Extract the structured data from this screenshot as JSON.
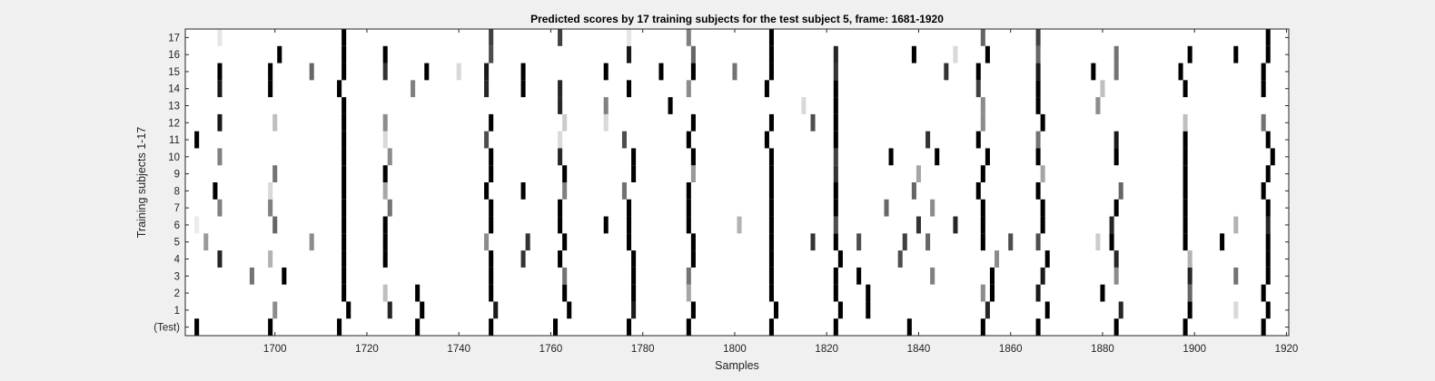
{
  "chart_data": {
    "type": "heatmap",
    "title": "Predicted scores by 17 training subjects for the test subject 5, frame: 1681-1920",
    "xlabel": "Samples",
    "ylabel": "Training subjects 1-17",
    "xlim": [
      1681,
      1920
    ],
    "x_ticks": [
      1700,
      1720,
      1740,
      1760,
      1780,
      1800,
      1820,
      1840,
      1860,
      1880,
      1900,
      1920
    ],
    "y_tick_labels": [
      "(Test)",
      "1",
      "2",
      "3",
      "4",
      "5",
      "6",
      "7",
      "8",
      "9",
      "10",
      "11",
      "12",
      "13",
      "14",
      "15",
      "16",
      "17"
    ],
    "colormap": "gray (white = 0, black = 1)",
    "background_color": "#ffffff",
    "rows": [
      {
        "label": "(Test)",
        "marks": [
          [
            1683,
            1
          ],
          [
            1699,
            1
          ],
          [
            1714,
            1
          ],
          [
            1731,
            1
          ],
          [
            1747,
            1
          ],
          [
            1761,
            1
          ],
          [
            1777,
            1
          ],
          [
            1790,
            1
          ],
          [
            1808,
            1
          ],
          [
            1822,
            1
          ],
          [
            1838,
            1
          ],
          [
            1854,
            1
          ],
          [
            1866,
            1
          ],
          [
            1883,
            1
          ],
          [
            1898,
            1
          ],
          [
            1915,
            1
          ]
        ]
      },
      {
        "label": "1",
        "marks": [
          [
            1700,
            0.45
          ],
          [
            1716,
            1
          ],
          [
            1725,
            0.85
          ],
          [
            1732,
            1
          ],
          [
            1748,
            0.9
          ],
          [
            1764,
            1
          ],
          [
            1778,
            0.9
          ],
          [
            1791,
            1
          ],
          [
            1809,
            1
          ],
          [
            1823,
            1
          ],
          [
            1829,
            1
          ],
          [
            1855,
            0.85
          ],
          [
            1868,
            1
          ],
          [
            1884,
            0.85
          ],
          [
            1899,
            1
          ],
          [
            1909,
            0.15
          ],
          [
            1916,
            1
          ]
        ]
      },
      {
        "label": "2",
        "marks": [
          [
            1715,
            1
          ],
          [
            1724,
            0.25
          ],
          [
            1731,
            1
          ],
          [
            1747,
            1
          ],
          [
            1763,
            1
          ],
          [
            1778,
            1
          ],
          [
            1790,
            0.35
          ],
          [
            1808,
            1
          ],
          [
            1822,
            1
          ],
          [
            1829,
            1
          ],
          [
            1854,
            0.45
          ],
          [
            1856,
            1
          ],
          [
            1866,
            0.9
          ],
          [
            1880,
            1
          ],
          [
            1899,
            0.6
          ],
          [
            1915,
            1
          ]
        ]
      },
      {
        "label": "3",
        "marks": [
          [
            1695,
            0.55
          ],
          [
            1702,
            1
          ],
          [
            1715,
            1
          ],
          [
            1747,
            1
          ],
          [
            1763,
            0.55
          ],
          [
            1778,
            1
          ],
          [
            1790,
            0.55
          ],
          [
            1808,
            1
          ],
          [
            1822,
            1
          ],
          [
            1827,
            1
          ],
          [
            1843,
            0.5
          ],
          [
            1856,
            1
          ],
          [
            1867,
            0.9
          ],
          [
            1883,
            0.45
          ],
          [
            1899,
            0.85
          ],
          [
            1909,
            0.55
          ],
          [
            1916,
            1
          ]
        ]
      },
      {
        "label": "4",
        "marks": [
          [
            1688,
            0.85
          ],
          [
            1699,
            0.3
          ],
          [
            1715,
            1
          ],
          [
            1724,
            1
          ],
          [
            1747,
            1
          ],
          [
            1754,
            0.8
          ],
          [
            1762,
            1
          ],
          [
            1778,
            1
          ],
          [
            1791,
            1
          ],
          [
            1808,
            1
          ],
          [
            1823,
            1
          ],
          [
            1836,
            0.7
          ],
          [
            1857,
            0.45
          ],
          [
            1868,
            1
          ],
          [
            1883,
            0.85
          ],
          [
            1899,
            0.3
          ],
          [
            1916,
            1
          ]
        ]
      },
      {
        "label": "5",
        "marks": [
          [
            1685,
            0.4
          ],
          [
            1708,
            0.45
          ],
          [
            1715,
            1
          ],
          [
            1724,
            1
          ],
          [
            1746,
            0.45
          ],
          [
            1755,
            0.8
          ],
          [
            1763,
            1
          ],
          [
            1777,
            1
          ],
          [
            1791,
            1
          ],
          [
            1808,
            1
          ],
          [
            1817,
            0.8
          ],
          [
            1822,
            1
          ],
          [
            1827,
            0.7
          ],
          [
            1837,
            0.75
          ],
          [
            1842,
            0.6
          ],
          [
            1854,
            1
          ],
          [
            1860,
            0.7
          ],
          [
            1866,
            0.7
          ],
          [
            1879,
            0.2
          ],
          [
            1882,
            1
          ],
          [
            1898,
            1
          ],
          [
            1906,
            1
          ],
          [
            1916,
            1
          ]
        ]
      },
      {
        "label": "6",
        "marks": [
          [
            1683,
            0.08
          ],
          [
            1700,
            0.6
          ],
          [
            1715,
            1
          ],
          [
            1724,
            1
          ],
          [
            1747,
            1
          ],
          [
            1762,
            1
          ],
          [
            1772,
            1
          ],
          [
            1777,
            1
          ],
          [
            1790,
            1
          ],
          [
            1801,
            0.3
          ],
          [
            1808,
            1
          ],
          [
            1822,
            0.7
          ],
          [
            1840,
            0.8
          ],
          [
            1848,
            0.85
          ],
          [
            1854,
            1
          ],
          [
            1867,
            1
          ],
          [
            1882,
            0.85
          ],
          [
            1898,
            1
          ],
          [
            1909,
            0.3
          ],
          [
            1916,
            0.85
          ]
        ]
      },
      {
        "label": "7",
        "marks": [
          [
            1688,
            0.5
          ],
          [
            1699,
            0.5
          ],
          [
            1715,
            1
          ],
          [
            1725,
            0.55
          ],
          [
            1747,
            1
          ],
          [
            1762,
            1
          ],
          [
            1777,
            1
          ],
          [
            1790,
            1
          ],
          [
            1808,
            1
          ],
          [
            1822,
            1
          ],
          [
            1833,
            0.6
          ],
          [
            1843,
            0.45
          ],
          [
            1854,
            1
          ],
          [
            1867,
            1
          ],
          [
            1883,
            1
          ],
          [
            1898,
            1
          ],
          [
            1916,
            1
          ]
        ]
      },
      {
        "label": "8",
        "marks": [
          [
            1687,
            1
          ],
          [
            1699,
            0.15
          ],
          [
            1715,
            1
          ],
          [
            1724,
            0.35
          ],
          [
            1746,
            1
          ],
          [
            1754,
            1
          ],
          [
            1763,
            0.5
          ],
          [
            1776,
            0.55
          ],
          [
            1790,
            1
          ],
          [
            1808,
            1
          ],
          [
            1822,
            1
          ],
          [
            1839,
            0.6
          ],
          [
            1853,
            1
          ],
          [
            1866,
            1
          ],
          [
            1884,
            0.6
          ],
          [
            1898,
            1
          ],
          [
            1915,
            1
          ]
        ]
      },
      {
        "label": "9",
        "marks": [
          [
            1700,
            0.55
          ],
          [
            1715,
            1
          ],
          [
            1724,
            1
          ],
          [
            1747,
            1
          ],
          [
            1763,
            1
          ],
          [
            1778,
            1
          ],
          [
            1791,
            0.4
          ],
          [
            1808,
            1
          ],
          [
            1822,
            0.8
          ],
          [
            1840,
            0.35
          ],
          [
            1854,
            1
          ],
          [
            1867,
            0.35
          ],
          [
            1898,
            1
          ],
          [
            1916,
            1
          ]
        ]
      },
      {
        "label": "10",
        "marks": [
          [
            1688,
            0.5
          ],
          [
            1715,
            1
          ],
          [
            1725,
            0.45
          ],
          [
            1747,
            1
          ],
          [
            1762,
            0.85
          ],
          [
            1778,
            1
          ],
          [
            1791,
            1
          ],
          [
            1808,
            1
          ],
          [
            1822,
            0.75
          ],
          [
            1834,
            1
          ],
          [
            1844,
            1
          ],
          [
            1855,
            1
          ],
          [
            1866,
            1
          ],
          [
            1883,
            1
          ],
          [
            1898,
            1
          ],
          [
            1917,
            1
          ]
        ]
      },
      {
        "label": "11",
        "marks": [
          [
            1683,
            1
          ],
          [
            1715,
            1
          ],
          [
            1724,
            0.15
          ],
          [
            1746,
            0.7
          ],
          [
            1762,
            0.15
          ],
          [
            1776,
            0.7
          ],
          [
            1790,
            1
          ],
          [
            1807,
            1
          ],
          [
            1822,
            1
          ],
          [
            1842,
            0.8
          ],
          [
            1853,
            1
          ],
          [
            1866,
            0.55
          ],
          [
            1883,
            0.9
          ],
          [
            1898,
            1
          ],
          [
            1916,
            1
          ]
        ]
      },
      {
        "label": "12",
        "marks": [
          [
            1688,
            0.9
          ],
          [
            1700,
            0.25
          ],
          [
            1715,
            1
          ],
          [
            1724,
            0.45
          ],
          [
            1747,
            1
          ],
          [
            1763,
            0.2
          ],
          [
            1772,
            0.15
          ],
          [
            1791,
            1
          ],
          [
            1808,
            1
          ],
          [
            1817,
            0.7
          ],
          [
            1822,
            1
          ],
          [
            1854,
            0.45
          ],
          [
            1867,
            1
          ],
          [
            1898,
            0.25
          ],
          [
            1915,
            0.55
          ]
        ]
      },
      {
        "label": "13",
        "marks": [
          [
            1715,
            1
          ],
          [
            1762,
            0.85
          ],
          [
            1772,
            0.5
          ],
          [
            1786,
            1
          ],
          [
            1815,
            0.15
          ],
          [
            1822,
            1
          ],
          [
            1854,
            0.45
          ],
          [
            1866,
            1
          ],
          [
            1879,
            0.45
          ]
        ]
      },
      {
        "label": "14",
        "marks": [
          [
            1688,
            0.9
          ],
          [
            1699,
            1
          ],
          [
            1714,
            1
          ],
          [
            1730,
            0.5
          ],
          [
            1746,
            0.85
          ],
          [
            1754,
            1
          ],
          [
            1762,
            0.85
          ],
          [
            1777,
            1
          ],
          [
            1790,
            0.45
          ],
          [
            1807,
            1
          ],
          [
            1822,
            1
          ],
          [
            1853,
            0.75
          ],
          [
            1866,
            1
          ],
          [
            1880,
            0.25
          ],
          [
            1898,
            1
          ],
          [
            1915,
            1
          ]
        ]
      },
      {
        "label": "15",
        "marks": [
          [
            1688,
            1
          ],
          [
            1699,
            1
          ],
          [
            1708,
            0.6
          ],
          [
            1715,
            1
          ],
          [
            1724,
            0.8
          ],
          [
            1733,
            1
          ],
          [
            1740,
            0.15
          ],
          [
            1746,
            0.9
          ],
          [
            1754,
            1
          ],
          [
            1772,
            1
          ],
          [
            1784,
            1
          ],
          [
            1791,
            1
          ],
          [
            1800,
            0.55
          ],
          [
            1808,
            1
          ],
          [
            1822,
            0.8
          ],
          [
            1846,
            0.8
          ],
          [
            1853,
            1
          ],
          [
            1866,
            0.9
          ],
          [
            1878,
            1
          ],
          [
            1883,
            0.55
          ],
          [
            1897,
            1
          ],
          [
            1915,
            1
          ]
        ]
      },
      {
        "label": "16",
        "marks": [
          [
            1701,
            1
          ],
          [
            1715,
            1
          ],
          [
            1724,
            1
          ],
          [
            1747,
            0.7
          ],
          [
            1777,
            0.9
          ],
          [
            1791,
            0.6
          ],
          [
            1808,
            1
          ],
          [
            1822,
            0.85
          ],
          [
            1839,
            1
          ],
          [
            1848,
            0.15
          ],
          [
            1855,
            1
          ],
          [
            1866,
            0.6
          ],
          [
            1883,
            0.55
          ],
          [
            1899,
            1
          ],
          [
            1909,
            1
          ],
          [
            1916,
            1
          ]
        ]
      },
      {
        "label": "17",
        "marks": [
          [
            1688,
            0.1
          ],
          [
            1715,
            1
          ],
          [
            1747,
            0.75
          ],
          [
            1762,
            0.75
          ],
          [
            1777,
            0.1
          ],
          [
            1790,
            0.5
          ],
          [
            1808,
            1
          ],
          [
            1854,
            0.6
          ],
          [
            1866,
            0.75
          ],
          [
            1916,
            1
          ]
        ]
      }
    ]
  }
}
